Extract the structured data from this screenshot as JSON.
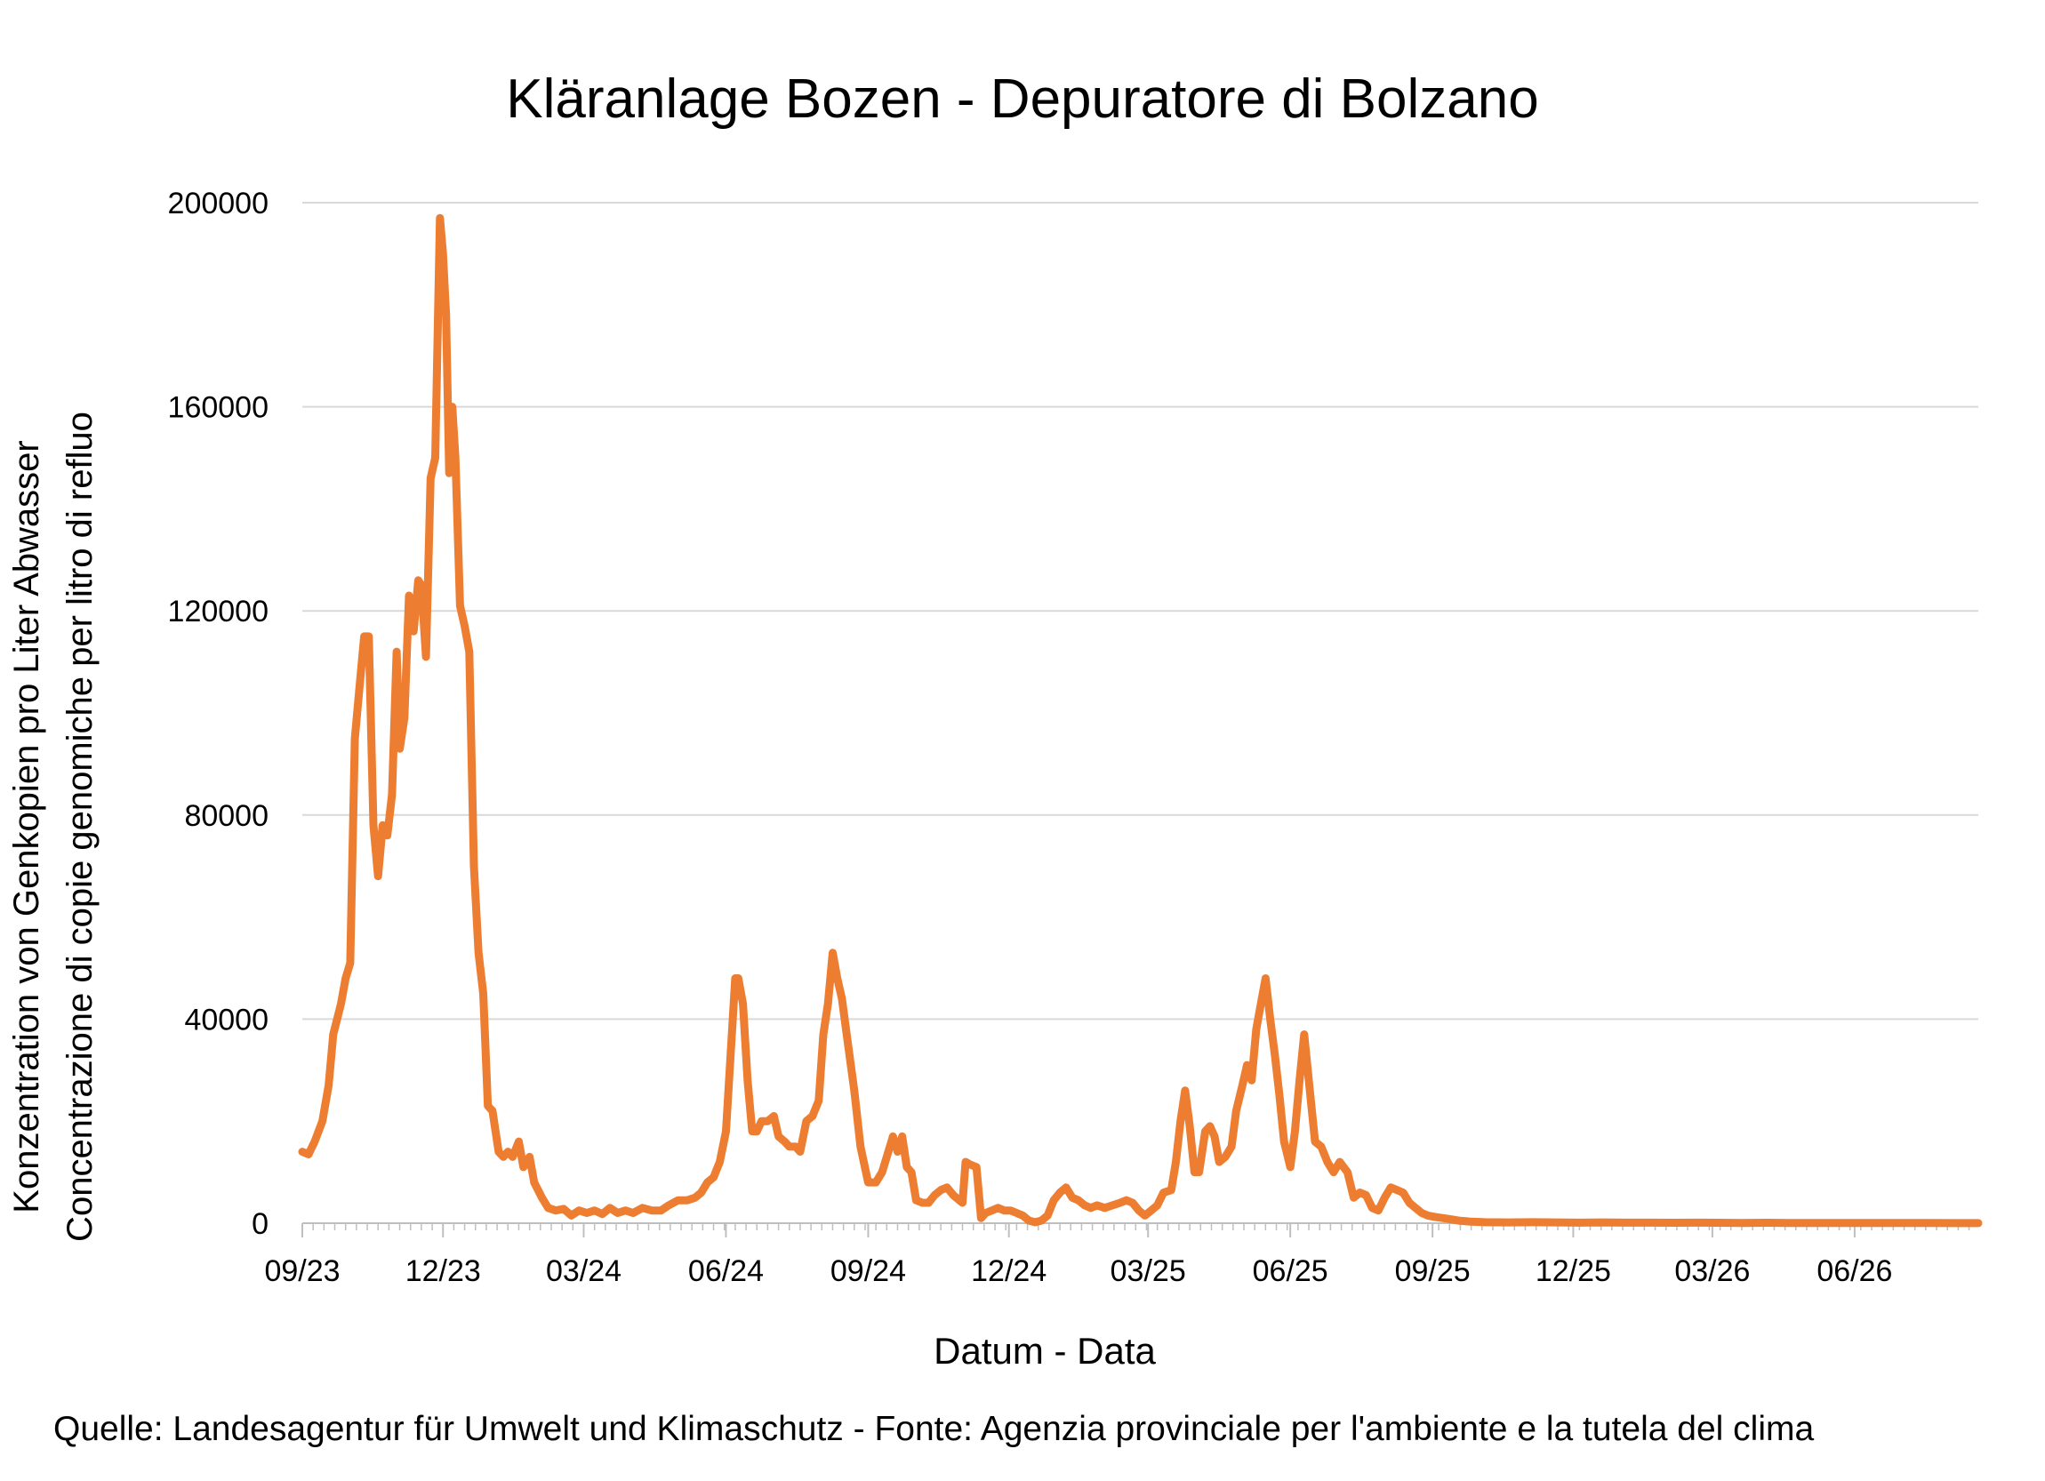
{
  "chart_data": {
    "type": "line",
    "title": "Kläranlage Bozen - Depuratore di Bolzano",
    "ylabel_lines": [
      "Konzentration von Genkopien pro Liter Abwasser",
      "Concentrazione di copie genomiche per litro di refluo"
    ],
    "xlabel": "Datum - Data",
    "source": "Quelle: Landesagentur für Umwelt und Klimaschutz - Fonte: Agenzia provinciale per l'ambiente e la tutela del clima",
    "ylim": [
      0,
      200000
    ],
    "yticks": [
      0,
      40000,
      80000,
      120000,
      160000,
      200000
    ],
    "xlim": [
      "2023-09-01",
      "2026-08-20"
    ],
    "xticks": [
      {
        "date": "2023-09-01",
        "label": "09/23"
      },
      {
        "date": "2023-12-01",
        "label": "12/23"
      },
      {
        "date": "2024-03-01",
        "label": "03/24"
      },
      {
        "date": "2024-06-01",
        "label": "06/24"
      },
      {
        "date": "2024-09-01",
        "label": "09/24"
      },
      {
        "date": "2024-12-01",
        "label": "12/24"
      },
      {
        "date": "2025-03-01",
        "label": "03/25"
      },
      {
        "date": "2025-06-01",
        "label": "06/25"
      },
      {
        "date": "2025-09-01",
        "label": "09/25"
      },
      {
        "date": "2025-12-01",
        "label": "12/25"
      },
      {
        "date": "2026-03-01",
        "label": "03/26"
      },
      {
        "date": "2026-06-01",
        "label": "06/26"
      }
    ],
    "grid": "horizontal",
    "legend": "none",
    "series": [
      {
        "color": "#ED7D31",
        "points": [
          [
            "2023-09-01",
            14000
          ],
          [
            "2023-09-05",
            13500
          ],
          [
            "2023-09-09",
            16000
          ],
          [
            "2023-09-14",
            20000
          ],
          [
            "2023-09-18",
            27000
          ],
          [
            "2023-09-21",
            37000
          ],
          [
            "2023-09-26",
            43000
          ],
          [
            "2023-09-29",
            48000
          ],
          [
            "2023-10-02",
            51000
          ],
          [
            "2023-10-05",
            95000
          ],
          [
            "2023-10-08",
            105000
          ],
          [
            "2023-10-11",
            115000
          ],
          [
            "2023-10-14",
            115000
          ],
          [
            "2023-10-17",
            78000
          ],
          [
            "2023-10-20",
            68000
          ],
          [
            "2023-10-23",
            78000
          ],
          [
            "2023-10-26",
            76000
          ],
          [
            "2023-10-29",
            84000
          ],
          [
            "2023-11-01",
            112000
          ],
          [
            "2023-11-03",
            93000
          ],
          [
            "2023-11-06",
            99000
          ],
          [
            "2023-11-09",
            123000
          ],
          [
            "2023-11-12",
            116000
          ],
          [
            "2023-11-15",
            126000
          ],
          [
            "2023-11-17",
            125000
          ],
          [
            "2023-11-20",
            111000
          ],
          [
            "2023-11-23",
            146000
          ],
          [
            "2023-11-26",
            150000
          ],
          [
            "2023-11-29",
            197000
          ],
          [
            "2023-12-01",
            190000
          ],
          [
            "2023-12-03",
            178000
          ],
          [
            "2023-12-05",
            147000
          ],
          [
            "2023-12-07",
            160000
          ],
          [
            "2023-12-09",
            150000
          ],
          [
            "2023-12-12",
            121000
          ],
          [
            "2023-12-15",
            117000
          ],
          [
            "2023-12-18",
            112000
          ],
          [
            "2023-12-21",
            70000
          ],
          [
            "2023-12-24",
            53000
          ],
          [
            "2023-12-27",
            45000
          ],
          [
            "2023-12-30",
            23000
          ],
          [
            "2024-01-02",
            22000
          ],
          [
            "2024-01-06",
            14000
          ],
          [
            "2024-01-09",
            13000
          ],
          [
            "2024-01-12",
            14000
          ],
          [
            "2024-01-15",
            13000
          ],
          [
            "2024-01-19",
            16000
          ],
          [
            "2024-01-22",
            11000
          ],
          [
            "2024-01-26",
            13000
          ],
          [
            "2024-01-29",
            8000
          ],
          [
            "2024-02-03",
            5000
          ],
          [
            "2024-02-07",
            3000
          ],
          [
            "2024-02-12",
            2500
          ],
          [
            "2024-02-17",
            2800
          ],
          [
            "2024-02-22",
            1500
          ],
          [
            "2024-02-27",
            2500
          ],
          [
            "2024-03-03",
            2000
          ],
          [
            "2024-03-08",
            2500
          ],
          [
            "2024-03-13",
            1800
          ],
          [
            "2024-03-18",
            3000
          ],
          [
            "2024-03-23",
            2000
          ],
          [
            "2024-03-28",
            2500
          ],
          [
            "2024-04-02",
            2000
          ],
          [
            "2024-04-08",
            3000
          ],
          [
            "2024-04-14",
            2500
          ],
          [
            "2024-04-20",
            2500
          ],
          [
            "2024-04-25",
            3500
          ],
          [
            "2024-05-01",
            4500
          ],
          [
            "2024-05-07",
            4500
          ],
          [
            "2024-05-12",
            5000
          ],
          [
            "2024-05-16",
            6000
          ],
          [
            "2024-05-20",
            8000
          ],
          [
            "2024-05-24",
            9000
          ],
          [
            "2024-05-28",
            12000
          ],
          [
            "2024-06-01",
            18000
          ],
          [
            "2024-06-04",
            33000
          ],
          [
            "2024-06-07",
            48000
          ],
          [
            "2024-06-09",
            48000
          ],
          [
            "2024-06-12",
            43000
          ],
          [
            "2024-06-15",
            28000
          ],
          [
            "2024-06-18",
            18000
          ],
          [
            "2024-06-21",
            18000
          ],
          [
            "2024-06-24",
            20000
          ],
          [
            "2024-06-28",
            20000
          ],
          [
            "2024-07-02",
            21000
          ],
          [
            "2024-07-05",
            17000
          ],
          [
            "2024-07-09",
            16000
          ],
          [
            "2024-07-12",
            15000
          ],
          [
            "2024-07-16",
            15000
          ],
          [
            "2024-07-19",
            14000
          ],
          [
            "2024-07-23",
            20000
          ],
          [
            "2024-07-27",
            21000
          ],
          [
            "2024-07-31",
            24000
          ],
          [
            "2024-08-03",
            37000
          ],
          [
            "2024-08-06",
            43000
          ],
          [
            "2024-08-09",
            53000
          ],
          [
            "2024-08-12",
            48000
          ],
          [
            "2024-08-15",
            44000
          ],
          [
            "2024-08-19",
            35000
          ],
          [
            "2024-08-23",
            26000
          ],
          [
            "2024-08-27",
            15000
          ],
          [
            "2024-09-01",
            8000
          ],
          [
            "2024-09-06",
            8000
          ],
          [
            "2024-09-10",
            10000
          ],
          [
            "2024-09-14",
            14000
          ],
          [
            "2024-09-17",
            17000
          ],
          [
            "2024-09-20",
            14000
          ],
          [
            "2024-09-23",
            17000
          ],
          [
            "2024-09-26",
            11000
          ],
          [
            "2024-09-29",
            10000
          ],
          [
            "2024-10-02",
            4500
          ],
          [
            "2024-10-06",
            4000
          ],
          [
            "2024-10-10",
            4000
          ],
          [
            "2024-10-14",
            5500
          ],
          [
            "2024-10-18",
            6500
          ],
          [
            "2024-10-22",
            7000
          ],
          [
            "2024-10-26",
            5500
          ],
          [
            "2024-10-30",
            4500
          ],
          [
            "2024-11-01",
            4000
          ],
          [
            "2024-11-03",
            12000
          ],
          [
            "2024-11-06",
            11500
          ],
          [
            "2024-11-10",
            11000
          ],
          [
            "2024-11-13",
            1000
          ],
          [
            "2024-11-16",
            2000
          ],
          [
            "2024-11-20",
            2500
          ],
          [
            "2024-11-24",
            3000
          ],
          [
            "2024-11-28",
            2500
          ],
          [
            "2024-12-02",
            2500
          ],
          [
            "2024-12-06",
            2000
          ],
          [
            "2024-12-10",
            1500
          ],
          [
            "2024-12-14",
            500
          ],
          [
            "2024-12-18",
            200
          ],
          [
            "2024-12-22",
            500
          ],
          [
            "2024-12-26",
            1500
          ],
          [
            "2024-12-30",
            4500
          ],
          [
            "2025-01-03",
            6000
          ],
          [
            "2025-01-07",
            7000
          ],
          [
            "2025-01-11",
            5000
          ],
          [
            "2025-01-15",
            4500
          ],
          [
            "2025-01-19",
            3500
          ],
          [
            "2025-01-23",
            3000
          ],
          [
            "2025-01-27",
            3500
          ],
          [
            "2025-02-01",
            3000
          ],
          [
            "2025-02-06",
            3500
          ],
          [
            "2025-02-11",
            4000
          ],
          [
            "2025-02-15",
            4500
          ],
          [
            "2025-02-19",
            4000
          ],
          [
            "2025-02-23",
            2500
          ],
          [
            "2025-02-27",
            1500
          ],
          [
            "2025-03-03",
            2500
          ],
          [
            "2025-03-07",
            3500
          ],
          [
            "2025-03-11",
            6000
          ],
          [
            "2025-03-16",
            6500
          ],
          [
            "2025-03-19",
            12000
          ],
          [
            "2025-03-22",
            20000
          ],
          [
            "2025-03-25",
            26000
          ],
          [
            "2025-03-28",
            19000
          ],
          [
            "2025-03-31",
            10000
          ],
          [
            "2025-04-03",
            10000
          ],
          [
            "2025-04-07",
            18000
          ],
          [
            "2025-04-10",
            19000
          ],
          [
            "2025-04-13",
            17000
          ],
          [
            "2025-04-16",
            12000
          ],
          [
            "2025-04-20",
            13000
          ],
          [
            "2025-04-24",
            15000
          ],
          [
            "2025-04-27",
            22000
          ],
          [
            "2025-05-01",
            27000
          ],
          [
            "2025-05-04",
            31000
          ],
          [
            "2025-05-07",
            28000
          ],
          [
            "2025-05-10",
            38000
          ],
          [
            "2025-05-13",
            43000
          ],
          [
            "2025-05-16",
            48000
          ],
          [
            "2025-05-19",
            40000
          ],
          [
            "2025-05-22",
            33000
          ],
          [
            "2025-05-25",
            25000
          ],
          [
            "2025-05-28",
            16000
          ],
          [
            "2025-06-01",
            11000
          ],
          [
            "2025-06-04",
            18000
          ],
          [
            "2025-06-07",
            28000
          ],
          [
            "2025-06-10",
            37000
          ],
          [
            "2025-06-13",
            28000
          ],
          [
            "2025-06-17",
            16000
          ],
          [
            "2025-06-21",
            15000
          ],
          [
            "2025-06-25",
            12000
          ],
          [
            "2025-06-29",
            10000
          ],
          [
            "2025-07-03",
            12000
          ],
          [
            "2025-07-08",
            10000
          ],
          [
            "2025-07-12",
            5000
          ],
          [
            "2025-07-16",
            6000
          ],
          [
            "2025-07-20",
            5500
          ],
          [
            "2025-07-24",
            3000
          ],
          [
            "2025-07-28",
            2500
          ],
          [
            "2025-08-01",
            5000
          ],
          [
            "2025-08-05",
            7000
          ],
          [
            "2025-08-09",
            6500
          ],
          [
            "2025-08-13",
            6000
          ],
          [
            "2025-08-17",
            4000
          ],
          [
            "2025-08-21",
            3000
          ],
          [
            "2025-08-25",
            2000
          ],
          [
            "2025-08-29",
            1500
          ],
          [
            "2025-09-03",
            1200
          ],
          [
            "2025-09-10",
            900
          ],
          [
            "2025-09-18",
            500
          ],
          [
            "2025-09-26",
            300
          ],
          [
            "2025-10-05",
            200
          ],
          [
            "2025-10-20",
            150
          ],
          [
            "2025-11-05",
            200
          ],
          [
            "2025-11-20",
            150
          ],
          [
            "2025-12-05",
            100
          ],
          [
            "2025-12-20",
            150
          ],
          [
            "2026-01-05",
            100
          ],
          [
            "2026-01-20",
            100
          ],
          [
            "2026-02-05",
            80
          ],
          [
            "2026-02-20",
            100
          ],
          [
            "2026-03-05",
            80
          ],
          [
            "2026-03-20",
            60
          ],
          [
            "2026-04-05",
            80
          ],
          [
            "2026-04-20",
            60
          ],
          [
            "2026-05-05",
            50
          ],
          [
            "2026-05-20",
            60
          ],
          [
            "2026-06-05",
            40
          ],
          [
            "2026-06-20",
            50
          ],
          [
            "2026-07-05",
            30
          ],
          [
            "2026-07-20",
            40
          ],
          [
            "2026-08-05",
            20
          ],
          [
            "2026-08-20",
            20
          ]
        ]
      }
    ]
  }
}
